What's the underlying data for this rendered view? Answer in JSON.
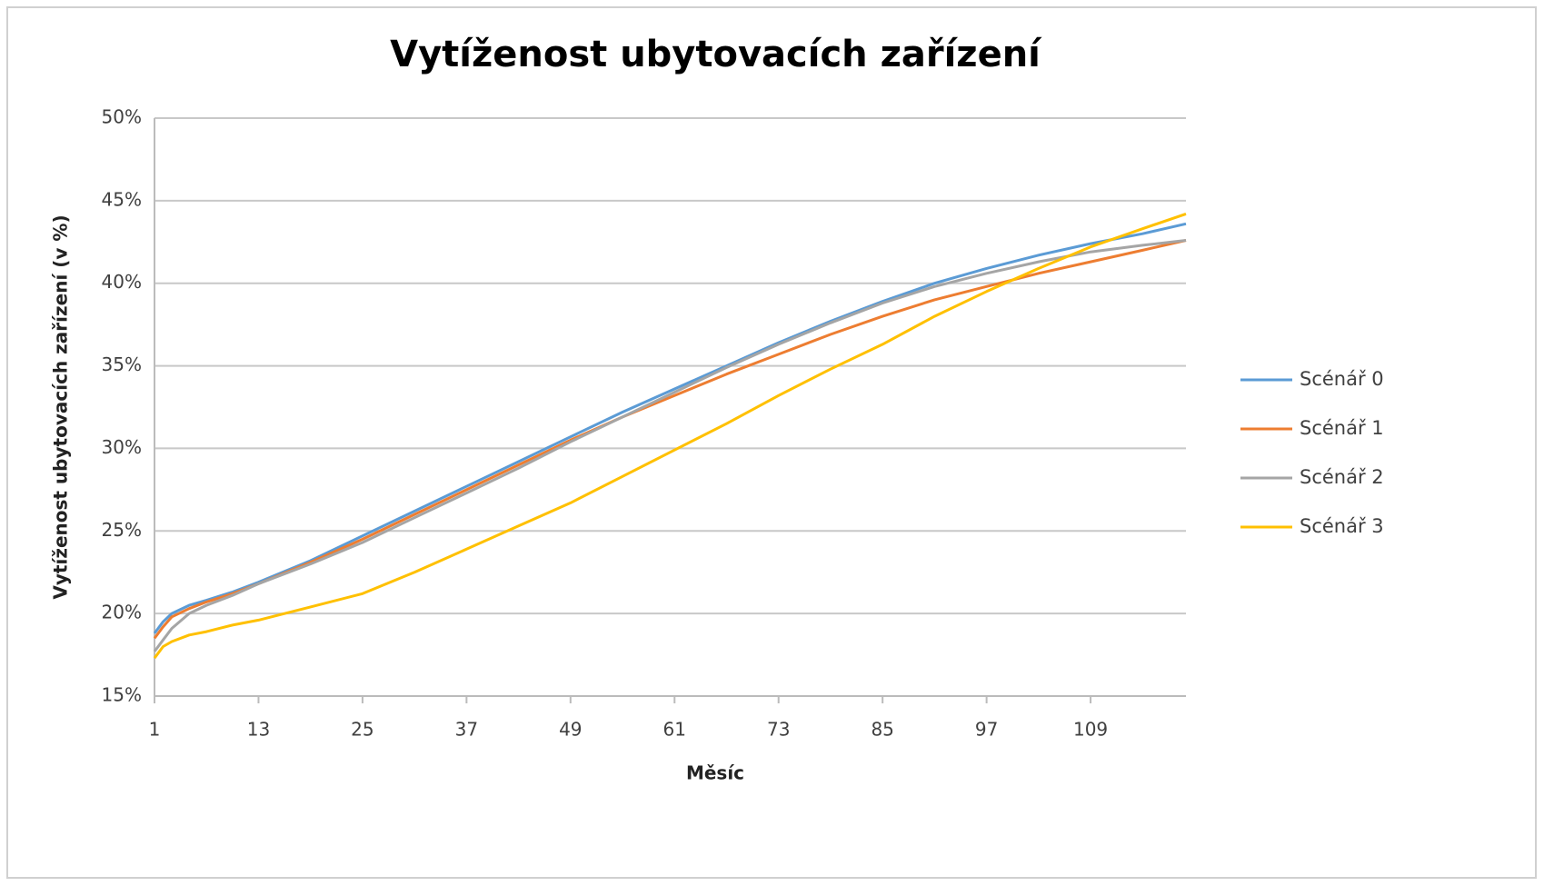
{
  "chart_data": {
    "type": "line",
    "title": "Vytíženost ubytovacích zařízení",
    "xlabel": "Měsíc",
    "ylabel": "Vytíženost ubytovacích zařízení (v %)",
    "x": [
      1,
      2,
      3,
      5,
      7,
      10,
      13,
      19,
      25,
      31,
      37,
      43,
      49,
      55,
      61,
      67,
      73,
      79,
      85,
      91,
      97,
      103,
      109,
      115,
      120
    ],
    "series": [
      {
        "name": "Scénář 0",
        "color": "#5b9bd5",
        "values": [
          18.8,
          19.5,
          20.0,
          20.5,
          20.8,
          21.3,
          21.9,
          23.2,
          24.7,
          26.2,
          27.7,
          29.2,
          30.7,
          32.2,
          33.6,
          35.0,
          36.4,
          37.7,
          38.9,
          40.0,
          40.9,
          41.7,
          42.4,
          43.0,
          43.6
        ]
      },
      {
        "name": "Scénář 1",
        "color": "#ed7d31",
        "values": [
          18.5,
          19.2,
          19.8,
          20.3,
          20.7,
          21.2,
          21.8,
          23.1,
          24.5,
          26.0,
          27.5,
          29.0,
          30.5,
          31.9,
          33.2,
          34.5,
          35.7,
          36.9,
          38.0,
          39.0,
          39.8,
          40.6,
          41.3,
          42.0,
          42.6
        ]
      },
      {
        "name": "Scénář 2",
        "color": "#a5a5a5",
        "values": [
          17.7,
          18.4,
          19.1,
          20.0,
          20.5,
          21.1,
          21.8,
          23.0,
          24.3,
          25.8,
          27.3,
          28.8,
          30.4,
          31.9,
          33.4,
          34.9,
          36.3,
          37.6,
          38.8,
          39.8,
          40.6,
          41.3,
          41.9,
          42.3,
          42.6
        ]
      },
      {
        "name": "Scénář 3",
        "color": "#ffc000",
        "values": [
          17.3,
          18.0,
          18.3,
          18.7,
          18.9,
          19.3,
          19.6,
          20.4,
          21.2,
          22.5,
          23.9,
          25.3,
          26.7,
          28.3,
          29.9,
          31.5,
          33.2,
          34.8,
          36.3,
          38.0,
          39.5,
          40.9,
          42.2,
          43.3,
          44.2
        ]
      }
    ],
    "xlim": [
      1,
      120
    ],
    "xticks": [
      1,
      13,
      25,
      37,
      49,
      61,
      73,
      85,
      97,
      109
    ],
    "ylim": [
      15,
      50
    ],
    "yticks": [
      {
        "value": 15,
        "label": "15%"
      },
      {
        "value": 20,
        "label": "20%"
      },
      {
        "value": 25,
        "label": "25%"
      },
      {
        "value": 30,
        "label": "30%"
      },
      {
        "value": 35,
        "label": "35%"
      },
      {
        "value": 40,
        "label": "40%"
      },
      {
        "value": 45,
        "label": "45%"
      },
      {
        "value": 50,
        "label": "50%"
      }
    ],
    "grid": true,
    "legend": "right"
  }
}
